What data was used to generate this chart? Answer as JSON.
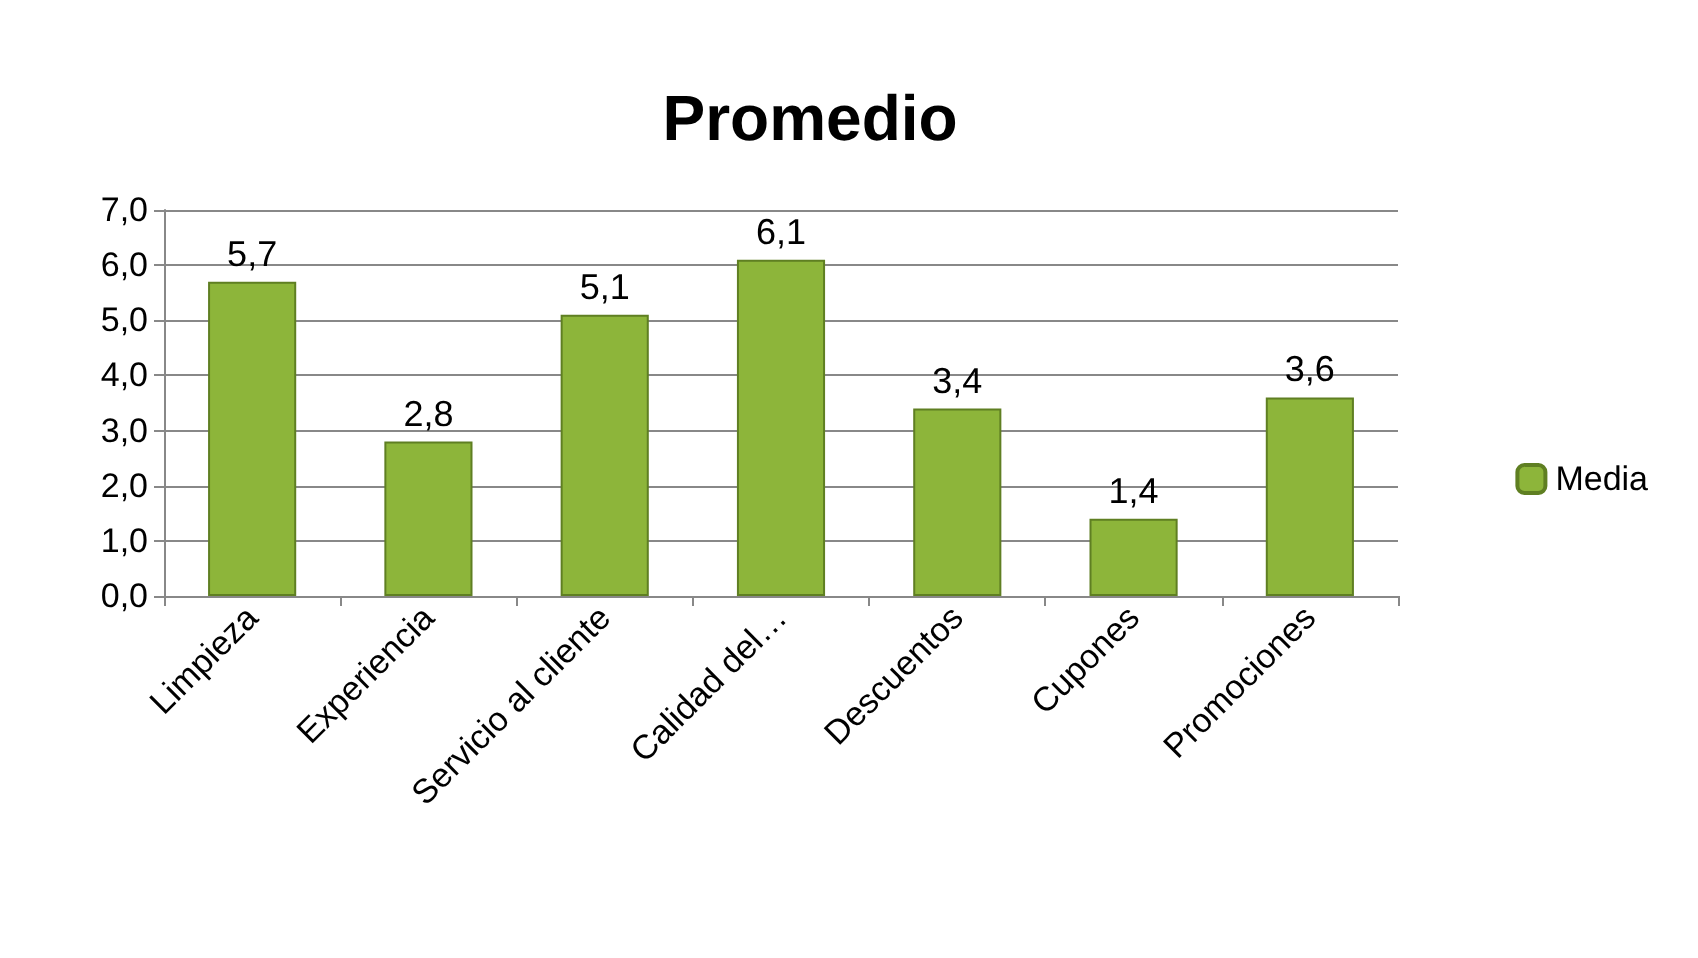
{
  "chart_data": {
    "type": "bar",
    "title": "Promedio",
    "categories": [
      "Limpieza",
      "Experiencia",
      "Servicio al cliente",
      "Calidad del…",
      "Descuentos",
      "Cupones",
      "Promociones"
    ],
    "series": [
      {
        "name": "Media",
        "color": "#8db53a",
        "values": [
          5.7,
          2.8,
          5.1,
          6.1,
          3.4,
          1.4,
          3.6
        ],
        "value_labels": [
          "5,7",
          "2,8",
          "5,1",
          "6,1",
          "3,4",
          "1,4",
          "3,6"
        ]
      }
    ],
    "ylim": [
      0,
      7
    ],
    "yticks": [
      {
        "value": 0,
        "label": "0,0"
      },
      {
        "value": 1,
        "label": "1,0"
      },
      {
        "value": 2,
        "label": "2,0"
      },
      {
        "value": 3,
        "label": "3,0"
      },
      {
        "value": 4,
        "label": "4,0"
      },
      {
        "value": 5,
        "label": "5,0"
      },
      {
        "value": 6,
        "label": "6,0"
      },
      {
        "value": 7,
        "label": "7,0"
      }
    ],
    "grid": "y",
    "legend": "right"
  }
}
